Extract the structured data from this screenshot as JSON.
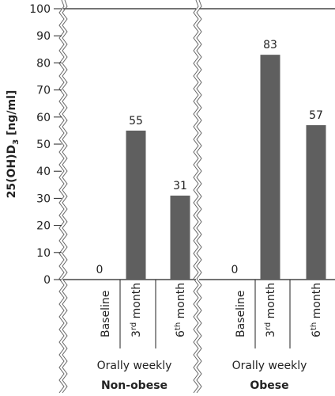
{
  "chart_data": {
    "type": "bar",
    "ylabel": "25(OH)D3 [ng/ml]",
    "ylabel_main": "25(OH)D",
    "ylabel_sub": "3",
    "ylabel_unit": " [ng/ml]",
    "ylim": [
      0,
      100
    ],
    "yticks": [
      0,
      10,
      20,
      30,
      40,
      50,
      60,
      70,
      80,
      90,
      100
    ],
    "grid": false,
    "bar_color": "#5f5f5f",
    "groups": [
      {
        "label_line1": "Orally weekly",
        "label_line2": "Non-obese",
        "categories": [
          {
            "base": "Baseline",
            "sup": "",
            "rest": ""
          },
          {
            "base": "3",
            "sup": "rd",
            "rest": " month"
          },
          {
            "base": "6",
            "sup": "th",
            "rest": " month"
          }
        ],
        "values": [
          0,
          55,
          31
        ]
      },
      {
        "label_line1": "Orally weekly",
        "label_line2": "Obese",
        "categories": [
          {
            "base": "Baseline",
            "sup": "",
            "rest": ""
          },
          {
            "base": "3",
            "sup": "rd",
            "rest": " month"
          },
          {
            "base": "6",
            "sup": "th",
            "rest": " month"
          }
        ],
        "values": [
          0,
          83,
          57
        ]
      }
    ]
  }
}
